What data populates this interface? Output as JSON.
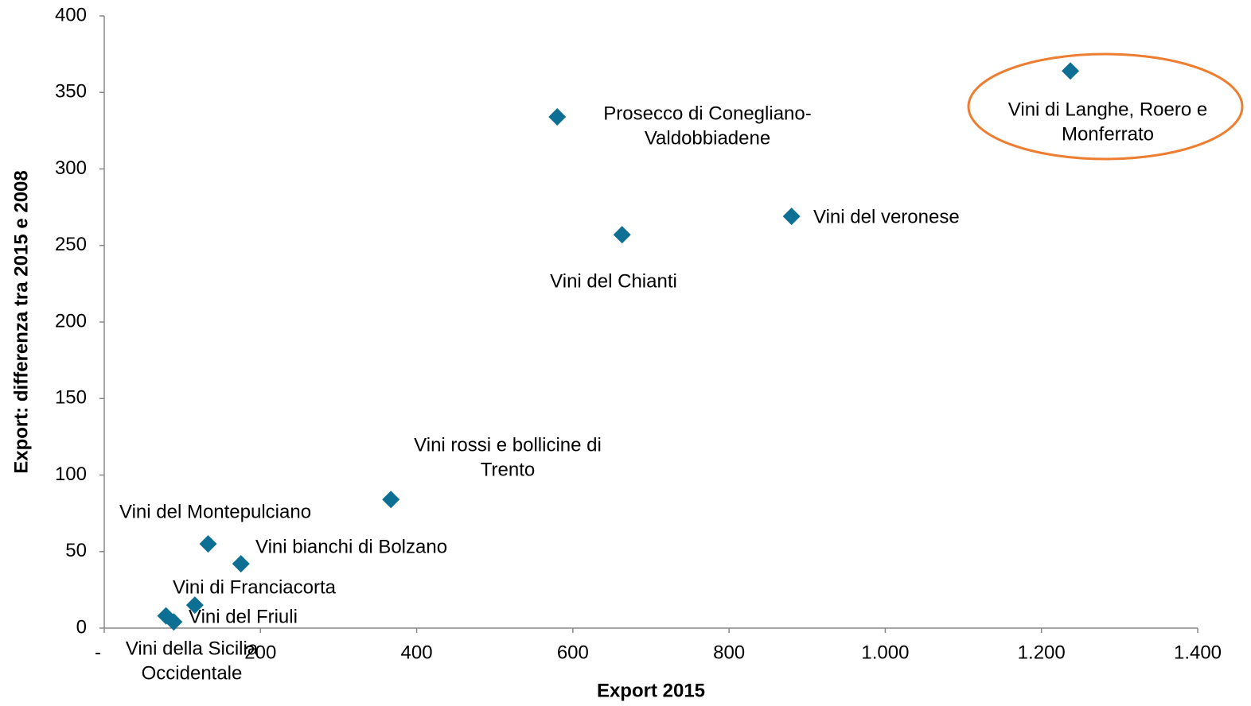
{
  "chart_data": {
    "type": "scatter",
    "x_label": "Export 2015",
    "y_label": "Export: differenza tra 2015 e 2008",
    "color": "#0e6f94",
    "highlight_color": "#ed7d31",
    "grid": false,
    "xlim": [
      0,
      1400
    ],
    "xticks": [
      {
        "value": 0,
        "label": "-"
      },
      200,
      400,
      600,
      800,
      {
        "value": 1000,
        "label": "1.000"
      },
      {
        "value": 1200,
        "label": "1.200"
      },
      {
        "value": 1400,
        "label": "1.400"
      }
    ],
    "ylim": [
      0,
      400
    ],
    "yticks": [
      0,
      50,
      100,
      150,
      200,
      250,
      300,
      350,
      400
    ],
    "labels": [
      [
        "Vini di Langhe, Roero e",
        "Monferrato"
      ],
      [
        "Prosecco di Conegliano-",
        "Valdobbiadene"
      ],
      [
        "Vini del Chianti"
      ],
      [
        "Vini del veronese"
      ],
      [
        "Vini rossi e bollicine di",
        "Trento"
      ],
      [
        "Vini del Montepulciano"
      ],
      [
        "Vini bianchi di Bolzano"
      ],
      [
        "Vini di Franciacorta"
      ],
      [
        "Vini del Friuli"
      ],
      [
        "Vini della Sicilia",
        "Occidentale"
      ]
    ],
    "x": [
      1237,
      580,
      663,
      880,
      367,
      133,
      175,
      116,
      89,
      79
    ],
    "y": [
      364,
      334,
      257,
      269,
      84,
      55,
      42,
      15,
      4,
      8
    ]
  }
}
